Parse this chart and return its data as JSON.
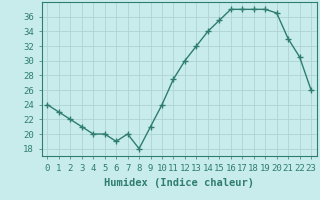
{
  "x": [
    0,
    1,
    2,
    3,
    4,
    5,
    6,
    7,
    8,
    9,
    10,
    11,
    12,
    13,
    14,
    15,
    16,
    17,
    18,
    19,
    20,
    21,
    22,
    23
  ],
  "y": [
    24,
    23,
    22,
    21,
    20,
    20,
    19,
    20,
    18,
    21,
    24,
    27.5,
    30,
    32,
    34,
    35.5,
    37,
    37,
    37,
    37,
    36.5,
    33,
    30.5,
    26
  ],
  "line_color": "#2e7d6e",
  "marker": "+",
  "markersize": 4,
  "linewidth": 1.0,
  "background_color": "#c8ecec",
  "grid_color": "#b0d4d4",
  "xlabel": "Humidex (Indice chaleur)",
  "xlim": [
    -0.5,
    23.5
  ],
  "ylim": [
    17,
    38
  ],
  "yticks": [
    18,
    20,
    22,
    24,
    26,
    28,
    30,
    32,
    34,
    36
  ],
  "xtick_labels": [
    "0",
    "1",
    "2",
    "3",
    "4",
    "5",
    "6",
    "7",
    "8",
    "9",
    "10",
    "11",
    "12",
    "13",
    "14",
    "15",
    "16",
    "17",
    "18",
    "19",
    "20",
    "21",
    "22",
    "23"
  ],
  "tick_color": "#2e7d6e",
  "label_color": "#2e7d6e",
  "font_size": 6.5,
  "xlabel_fontsize": 7.5
}
